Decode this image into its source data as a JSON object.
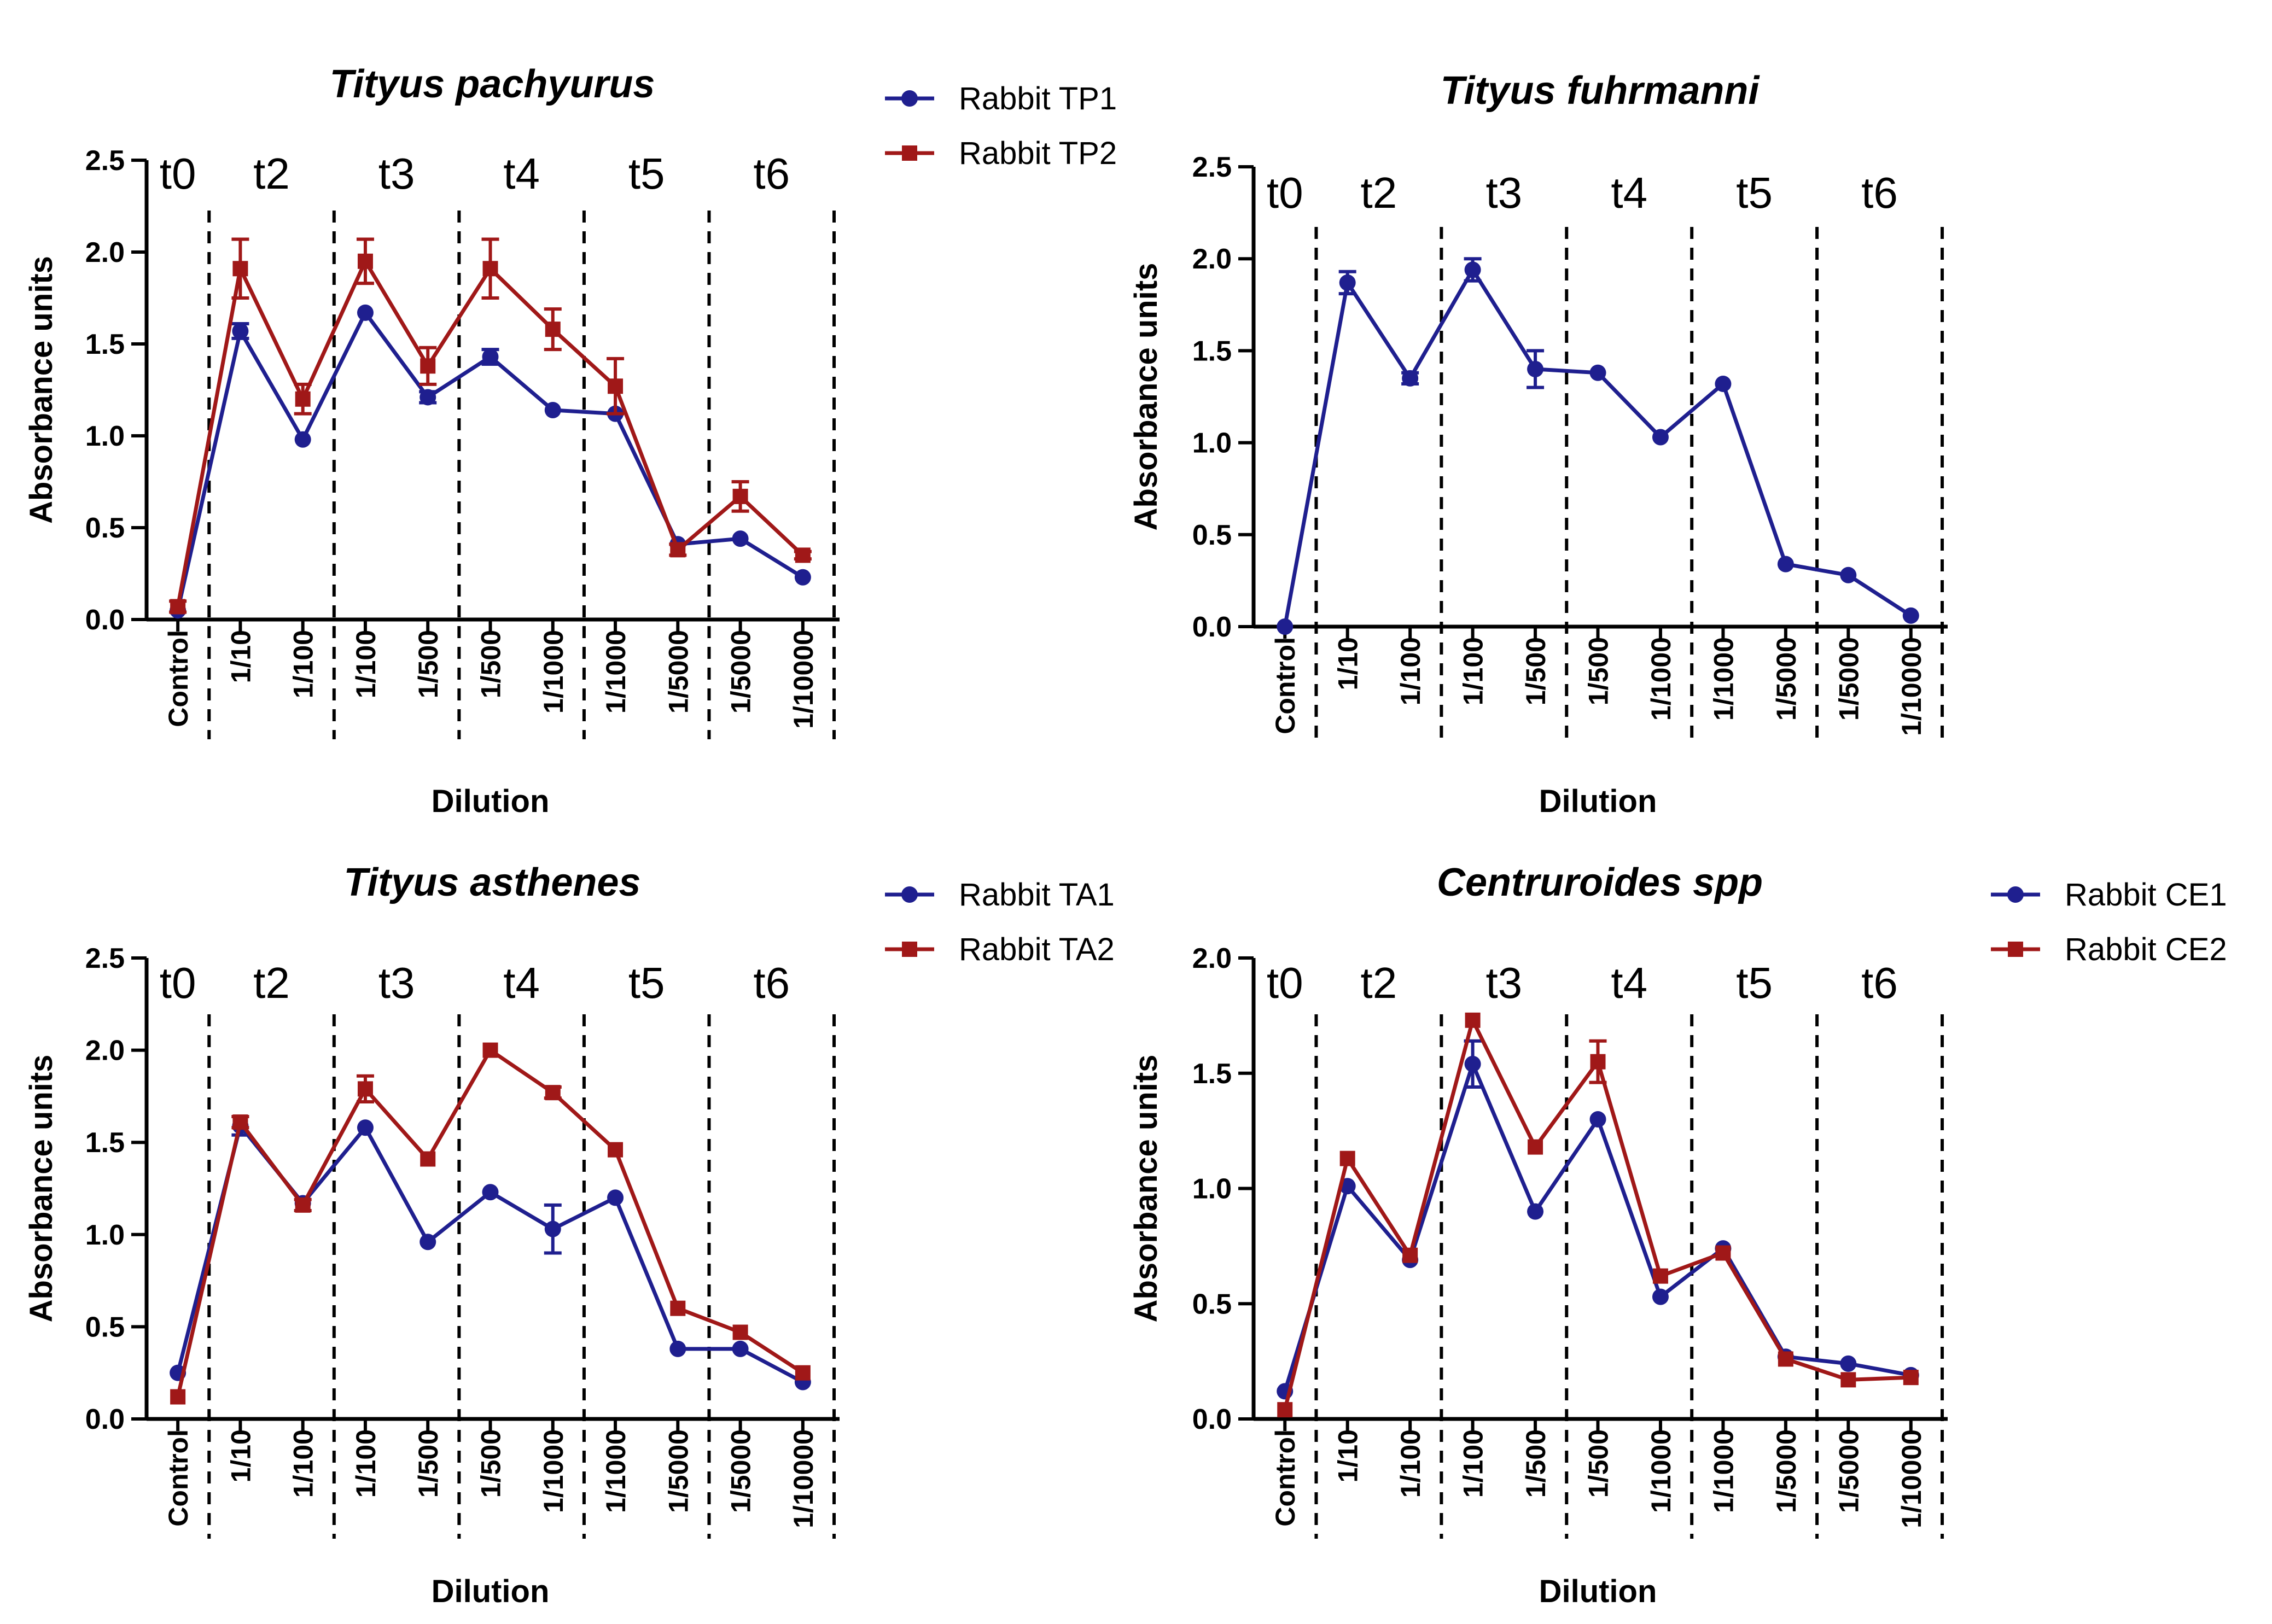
{
  "colors": {
    "blue": "#1F1F8F",
    "red": "#A01818",
    "axis": "#000000"
  },
  "chart_data": [
    {
      "type": "line",
      "title": "Tityus pachyurus",
      "xlabel": "Dilution",
      "ylabel": "Absorbance units",
      "ylim": [
        0,
        2.5
      ],
      "yticks": [
        "0.0",
        "0.5",
        "1.0",
        "1.5",
        "2.0",
        "2.5"
      ],
      "categories": [
        "Control",
        "1/10",
        "1/100",
        "1/100",
        "1/500",
        "1/500",
        "1/1000",
        "1/1000",
        "1/5000",
        "1/5000",
        "1/10000"
      ],
      "time_labels": [
        "t0",
        "t2",
        "t3",
        "t4",
        "t5",
        "t6"
      ],
      "legend_position": "top-right",
      "series": [
        {
          "name": "Rabbit TP1",
          "marker": "circle",
          "color": "#1F1F8F",
          "values": [
            0.05,
            1.57,
            0.98,
            1.67,
            1.21,
            1.43,
            1.14,
            1.12,
            0.41,
            0.44,
            0.23
          ],
          "errors": [
            0,
            0.04,
            0,
            0,
            0.03,
            0.04,
            0,
            0,
            0,
            0,
            0
          ]
        },
        {
          "name": "Rabbit TP2",
          "marker": "square",
          "color": "#A01818",
          "values": [
            0.07,
            1.91,
            1.2,
            1.95,
            1.38,
            1.91,
            1.58,
            1.27,
            0.38,
            0.67,
            0.35
          ],
          "errors": [
            0.03,
            0.16,
            0.08,
            0.12,
            0.1,
            0.16,
            0.11,
            0.15,
            0.03,
            0.08,
            0.02
          ]
        }
      ]
    },
    {
      "type": "line",
      "title": "Tityus fuhrmanni",
      "xlabel": "Dilution",
      "ylabel": "Absorbance units",
      "ylim": [
        0,
        2.5
      ],
      "yticks": [
        "0.0",
        "0.5",
        "1.0",
        "1.5",
        "2.0",
        "2.5"
      ],
      "categories": [
        "Control",
        "1/10",
        "1/100",
        "1/100",
        "1/500",
        "1/500",
        "1/1000",
        "1/1000",
        "1/5000",
        "1/5000",
        "1/10000"
      ],
      "time_labels": [
        "t0",
        "t2",
        "t3",
        "t4",
        "t5",
        "t6"
      ],
      "legend_position": "none",
      "series": [
        {
          "name": "",
          "marker": "circle",
          "color": "#1F1F8F",
          "values": [
            0.0,
            1.87,
            1.35,
            1.94,
            1.4,
            1.38,
            1.03,
            1.32,
            0.34,
            0.28,
            0.06
          ],
          "errors": [
            0,
            0.06,
            0.03,
            0.06,
            0.1,
            0,
            0,
            0,
            0,
            0,
            0
          ]
        }
      ]
    },
    {
      "type": "line",
      "title": "Tityus asthenes",
      "xlabel": "Dilution",
      "ylabel": "Absorbance units",
      "ylim": [
        0,
        2.5
      ],
      "yticks": [
        "0.0",
        "0.5",
        "1.0",
        "1.5",
        "2.0",
        "2.5"
      ],
      "categories": [
        "Control",
        "1/10",
        "1/100",
        "1/100",
        "1/500",
        "1/500",
        "1/1000",
        "1/1000",
        "1/5000",
        "1/5000",
        "1/10000"
      ],
      "time_labels": [
        "t0",
        "t2",
        "t3",
        "t4",
        "t5",
        "t6"
      ],
      "legend_position": "top-right",
      "series": [
        {
          "name": "Rabbit TA1",
          "marker": "circle",
          "color": "#1F1F8F",
          "values": [
            0.25,
            1.59,
            1.17,
            1.58,
            0.96,
            1.23,
            1.03,
            1.2,
            0.38,
            0.38,
            0.2
          ],
          "errors": [
            0,
            0.05,
            0,
            0,
            0,
            0,
            0.13,
            0,
            0,
            0,
            0
          ]
        },
        {
          "name": "Rabbit TA2",
          "marker": "square",
          "color": "#A01818",
          "values": [
            0.12,
            1.61,
            1.16,
            1.79,
            1.41,
            2.0,
            1.77,
            1.46,
            0.6,
            0.47,
            0.25
          ],
          "errors": [
            0,
            0.03,
            0.03,
            0.07,
            0,
            0,
            0.03,
            0,
            0,
            0,
            0
          ]
        }
      ]
    },
    {
      "type": "line",
      "title": "Centruroides spp",
      "xlabel": "Dilution",
      "ylabel": "Absorbance units",
      "ylim": [
        0,
        2.0
      ],
      "yticks": [
        "0.0",
        "0.5",
        "1.0",
        "1.5",
        "2.0"
      ],
      "categories": [
        "Control",
        "1/10",
        "1/100",
        "1/100",
        "1/500",
        "1/500",
        "1/1000",
        "1/1000",
        "1/5000",
        "1/5000",
        "1/10000"
      ],
      "time_labels": [
        "t0",
        "t2",
        "t3",
        "t4",
        "t5",
        "t6"
      ],
      "legend_position": "top-right",
      "series": [
        {
          "name": "Rabbit CE1",
          "marker": "circle",
          "color": "#1F1F8F",
          "values": [
            0.12,
            1.01,
            0.69,
            1.54,
            0.9,
            1.3,
            0.53,
            0.74,
            0.27,
            0.24,
            0.19
          ],
          "errors": [
            0,
            0,
            0,
            0.1,
            0,
            0,
            0,
            0,
            0,
            0,
            0
          ]
        },
        {
          "name": "Rabbit CE2",
          "marker": "square",
          "color": "#A01818",
          "values": [
            0.04,
            1.13,
            0.71,
            1.73,
            1.18,
            1.55,
            0.62,
            0.72,
            0.26,
            0.17,
            0.18
          ],
          "errors": [
            0,
            0,
            0,
            0,
            0,
            0.09,
            0,
            0,
            0,
            0,
            0
          ]
        }
      ]
    }
  ]
}
